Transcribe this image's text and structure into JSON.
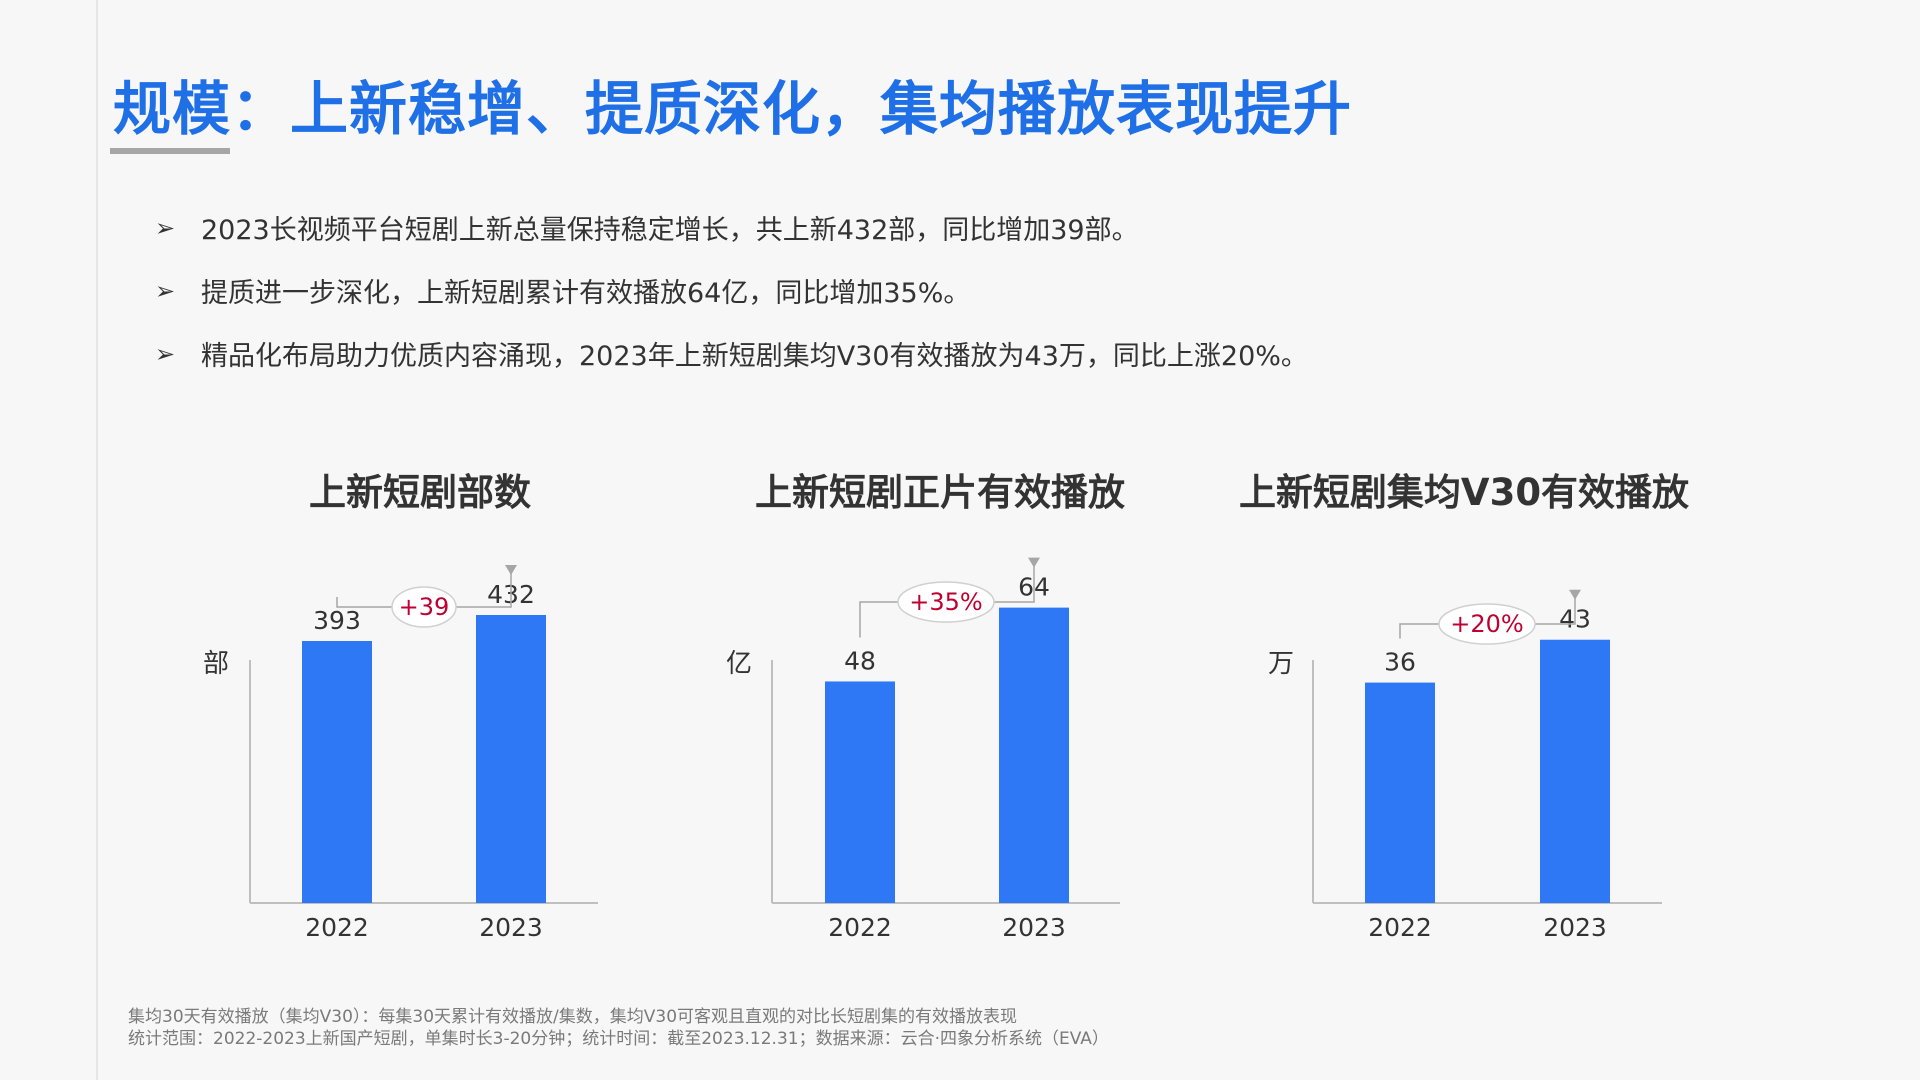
{
  "page": {
    "title": "规模：上新稳增、提质深化，集均播放表现提升"
  },
  "bullets": {
    "arrow_icon": "arrow-bullet-icon",
    "items": [
      "2023长视频平台短剧上新总量保持稳定增长，共上新432部，同比增加39部。",
      "提质进一步深化，上新短剧累计有效播放64亿，同比增加35%。",
      "精品化布局助力优质内容涌现，2023年上新短剧集均V30有效播放为43万，同比上涨20%。"
    ]
  },
  "colors": {
    "title": "#1f6fe6",
    "bar": "#2f78f5",
    "growth_text": "#c00030",
    "axis": "#bfbfbf",
    "connector": "#a6a6a6"
  },
  "chart_data": [
    {
      "type": "bar",
      "title": "上新短剧部数",
      "unit": "部",
      "categories": [
        "2022",
        "2023"
      ],
      "values": [
        393,
        432
      ],
      "value_labels": [
        "393",
        "432"
      ],
      "growth": "+39",
      "ylim": [
        0,
        450
      ]
    },
    {
      "type": "bar",
      "title": "上新短剧正片有效播放",
      "unit": "亿",
      "categories": [
        "2022",
        "2023"
      ],
      "values": [
        48,
        64
      ],
      "value_labels": [
        "48",
        "64"
      ],
      "growth": "+35%",
      "ylim": [
        0,
        65
      ]
    },
    {
      "type": "bar",
      "title": "上新短剧集均V30有效播放",
      "unit": "万",
      "categories": [
        "2022",
        "2023"
      ],
      "values": [
        36,
        43
      ],
      "value_labels": [
        "36",
        "43"
      ],
      "growth": "+20%",
      "ylim": [
        0,
        49
      ]
    }
  ],
  "footnotes": {
    "definition": "集均30天有效播放（集均V30）：每集30天累计有效播放/集数，集均V30可客观且直观的对比长短剧集的有效播放表现",
    "scope": "统计范围：2022-2023上新国产短剧，单集时长3-20分钟；统计时间：截至2023.12.31；数据来源：云合·四象分析系统（EVA）"
  }
}
